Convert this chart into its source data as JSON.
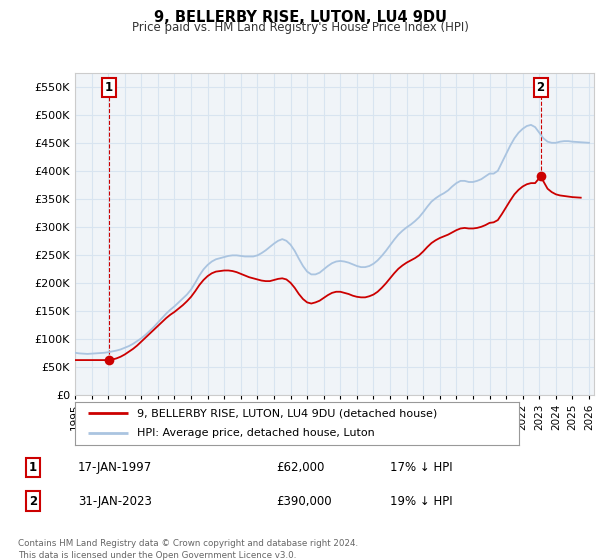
{
  "title": "9, BELLERBY RISE, LUTON, LU4 9DU",
  "subtitle": "Price paid vs. HM Land Registry's House Price Index (HPI)",
  "ylim": [
    0,
    575000
  ],
  "yticks": [
    0,
    50000,
    100000,
    150000,
    200000,
    250000,
    300000,
    350000,
    400000,
    450000,
    500000,
    550000
  ],
  "xlim_start": 1995.0,
  "xlim_end": 2026.3,
  "hpi_color": "#aac4e0",
  "price_color": "#cc0000",
  "transaction1_date": 1997.04,
  "transaction1_price": 62000,
  "transaction1_label": "1",
  "transaction2_date": 2023.08,
  "transaction2_price": 390000,
  "transaction2_label": "2",
  "legend_line1": "9, BELLERBY RISE, LUTON, LU4 9DU (detached house)",
  "legend_line2": "HPI: Average price, detached house, Luton",
  "table_row1_num": "1",
  "table_row1_date": "17-JAN-1997",
  "table_row1_price": "£62,000",
  "table_row1_hpi": "17% ↓ HPI",
  "table_row2_num": "2",
  "table_row2_date": "31-JAN-2023",
  "table_row2_price": "£390,000",
  "table_row2_hpi": "19% ↓ HPI",
  "footer": "Contains HM Land Registry data © Crown copyright and database right 2024.\nThis data is licensed under the Open Government Licence v3.0.",
  "bg_color": "#ffffff",
  "grid_color": "#d8e4f0",
  "hpi_data": [
    [
      1995.0,
      75000
    ],
    [
      1995.25,
      74000
    ],
    [
      1995.5,
      73500
    ],
    [
      1995.75,
      73000
    ],
    [
      1996.0,
      73500
    ],
    [
      1996.25,
      74000
    ],
    [
      1996.5,
      74500
    ],
    [
      1996.75,
      75000
    ],
    [
      1997.0,
      76000
    ],
    [
      1997.25,
      77500
    ],
    [
      1997.5,
      79000
    ],
    [
      1997.75,
      81000
    ],
    [
      1998.0,
      84000
    ],
    [
      1998.25,
      87000
    ],
    [
      1998.5,
      91000
    ],
    [
      1998.75,
      96000
    ],
    [
      1999.0,
      101000
    ],
    [
      1999.25,
      107000
    ],
    [
      1999.5,
      114000
    ],
    [
      1999.75,
      121000
    ],
    [
      2000.0,
      129000
    ],
    [
      2000.25,
      137000
    ],
    [
      2000.5,
      145000
    ],
    [
      2000.75,
      152000
    ],
    [
      2001.0,
      158000
    ],
    [
      2001.25,
      165000
    ],
    [
      2001.5,
      172000
    ],
    [
      2001.75,
      179000
    ],
    [
      2002.0,
      188000
    ],
    [
      2002.25,
      200000
    ],
    [
      2002.5,
      213000
    ],
    [
      2002.75,
      224000
    ],
    [
      2003.0,
      232000
    ],
    [
      2003.25,
      238000
    ],
    [
      2003.5,
      242000
    ],
    [
      2003.75,
      244000
    ],
    [
      2004.0,
      246000
    ],
    [
      2004.25,
      248000
    ],
    [
      2004.5,
      249000
    ],
    [
      2004.75,
      249000
    ],
    [
      2005.0,
      248000
    ],
    [
      2005.25,
      247000
    ],
    [
      2005.5,
      247000
    ],
    [
      2005.75,
      247000
    ],
    [
      2006.0,
      249000
    ],
    [
      2006.25,
      253000
    ],
    [
      2006.5,
      258000
    ],
    [
      2006.75,
      264000
    ],
    [
      2007.0,
      270000
    ],
    [
      2007.25,
      275000
    ],
    [
      2007.5,
      278000
    ],
    [
      2007.75,
      275000
    ],
    [
      2008.0,
      268000
    ],
    [
      2008.25,
      257000
    ],
    [
      2008.5,
      243000
    ],
    [
      2008.75,
      230000
    ],
    [
      2009.0,
      220000
    ],
    [
      2009.25,
      215000
    ],
    [
      2009.5,
      215000
    ],
    [
      2009.75,
      218000
    ],
    [
      2010.0,
      224000
    ],
    [
      2010.25,
      230000
    ],
    [
      2010.5,
      235000
    ],
    [
      2010.75,
      238000
    ],
    [
      2011.0,
      239000
    ],
    [
      2011.25,
      238000
    ],
    [
      2011.5,
      236000
    ],
    [
      2011.75,
      233000
    ],
    [
      2012.0,
      230000
    ],
    [
      2012.25,
      228000
    ],
    [
      2012.5,
      228000
    ],
    [
      2012.75,
      230000
    ],
    [
      2013.0,
      234000
    ],
    [
      2013.25,
      240000
    ],
    [
      2013.5,
      248000
    ],
    [
      2013.75,
      257000
    ],
    [
      2014.0,
      267000
    ],
    [
      2014.25,
      277000
    ],
    [
      2014.5,
      286000
    ],
    [
      2014.75,
      293000
    ],
    [
      2015.0,
      299000
    ],
    [
      2015.25,
      304000
    ],
    [
      2015.5,
      310000
    ],
    [
      2015.75,
      317000
    ],
    [
      2016.0,
      326000
    ],
    [
      2016.25,
      336000
    ],
    [
      2016.5,
      345000
    ],
    [
      2016.75,
      351000
    ],
    [
      2017.0,
      356000
    ],
    [
      2017.25,
      360000
    ],
    [
      2017.5,
      365000
    ],
    [
      2017.75,
      372000
    ],
    [
      2018.0,
      378000
    ],
    [
      2018.25,
      382000
    ],
    [
      2018.5,
      382000
    ],
    [
      2018.75,
      380000
    ],
    [
      2019.0,
      380000
    ],
    [
      2019.25,
      382000
    ],
    [
      2019.5,
      385000
    ],
    [
      2019.75,
      390000
    ],
    [
      2020.0,
      395000
    ],
    [
      2020.25,
      395000
    ],
    [
      2020.5,
      400000
    ],
    [
      2020.75,
      415000
    ],
    [
      2021.0,
      430000
    ],
    [
      2021.25,
      445000
    ],
    [
      2021.5,
      458000
    ],
    [
      2021.75,
      468000
    ],
    [
      2022.0,
      475000
    ],
    [
      2022.25,
      480000
    ],
    [
      2022.5,
      482000
    ],
    [
      2022.75,
      478000
    ],
    [
      2023.0,
      468000
    ],
    [
      2023.25,
      458000
    ],
    [
      2023.5,
      452000
    ],
    [
      2023.75,
      450000
    ],
    [
      2024.0,
      450000
    ],
    [
      2024.25,
      452000
    ],
    [
      2024.5,
      453000
    ],
    [
      2024.75,
      453000
    ],
    [
      2025.0,
      452000
    ],
    [
      2025.5,
      451000
    ],
    [
      2026.0,
      450000
    ]
  ],
  "price_data": [
    [
      1995.0,
      62000
    ],
    [
      1995.25,
      62000
    ],
    [
      1995.5,
      62000
    ],
    [
      1995.75,
      62000
    ],
    [
      1996.0,
      62000
    ],
    [
      1996.25,
      62000
    ],
    [
      1996.5,
      62000
    ],
    [
      1996.75,
      62000
    ],
    [
      1997.04,
      62000
    ],
    [
      1997.25,
      63000
    ],
    [
      1997.5,
      65000
    ],
    [
      1997.75,
      68000
    ],
    [
      1998.0,
      72000
    ],
    [
      1998.25,
      77000
    ],
    [
      1998.5,
      82000
    ],
    [
      1998.75,
      88000
    ],
    [
      1999.0,
      95000
    ],
    [
      1999.25,
      102000
    ],
    [
      1999.5,
      109000
    ],
    [
      1999.75,
      116000
    ],
    [
      2000.0,
      123000
    ],
    [
      2000.25,
      130000
    ],
    [
      2000.5,
      137000
    ],
    [
      2000.75,
      143000
    ],
    [
      2001.0,
      148000
    ],
    [
      2001.25,
      154000
    ],
    [
      2001.5,
      160000
    ],
    [
      2001.75,
      167000
    ],
    [
      2002.0,
      175000
    ],
    [
      2002.25,
      185000
    ],
    [
      2002.5,
      196000
    ],
    [
      2002.75,
      205000
    ],
    [
      2003.0,
      212000
    ],
    [
      2003.25,
      217000
    ],
    [
      2003.5,
      220000
    ],
    [
      2003.75,
      221000
    ],
    [
      2004.0,
      222000
    ],
    [
      2004.25,
      222000
    ],
    [
      2004.5,
      221000
    ],
    [
      2004.75,
      219000
    ],
    [
      2005.0,
      216000
    ],
    [
      2005.25,
      213000
    ],
    [
      2005.5,
      210000
    ],
    [
      2005.75,
      208000
    ],
    [
      2006.0,
      206000
    ],
    [
      2006.25,
      204000
    ],
    [
      2006.5,
      203000
    ],
    [
      2006.75,
      203000
    ],
    [
      2007.0,
      205000
    ],
    [
      2007.25,
      207000
    ],
    [
      2007.5,
      208000
    ],
    [
      2007.75,
      206000
    ],
    [
      2008.0,
      200000
    ],
    [
      2008.25,
      191000
    ],
    [
      2008.5,
      180000
    ],
    [
      2008.75,
      171000
    ],
    [
      2009.0,
      165000
    ],
    [
      2009.25,
      163000
    ],
    [
      2009.5,
      165000
    ],
    [
      2009.75,
      168000
    ],
    [
      2010.0,
      173000
    ],
    [
      2010.25,
      178000
    ],
    [
      2010.5,
      182000
    ],
    [
      2010.75,
      184000
    ],
    [
      2011.0,
      184000
    ],
    [
      2011.25,
      182000
    ],
    [
      2011.5,
      180000
    ],
    [
      2011.75,
      177000
    ],
    [
      2012.0,
      175000
    ],
    [
      2012.25,
      174000
    ],
    [
      2012.5,
      174000
    ],
    [
      2012.75,
      176000
    ],
    [
      2013.0,
      179000
    ],
    [
      2013.25,
      184000
    ],
    [
      2013.5,
      191000
    ],
    [
      2013.75,
      199000
    ],
    [
      2014.0,
      208000
    ],
    [
      2014.25,
      217000
    ],
    [
      2014.5,
      225000
    ],
    [
      2014.75,
      231000
    ],
    [
      2015.0,
      236000
    ],
    [
      2015.25,
      240000
    ],
    [
      2015.5,
      244000
    ],
    [
      2015.75,
      249000
    ],
    [
      2016.0,
      256000
    ],
    [
      2016.25,
      264000
    ],
    [
      2016.5,
      271000
    ],
    [
      2016.75,
      276000
    ],
    [
      2017.0,
      280000
    ],
    [
      2017.25,
      283000
    ],
    [
      2017.5,
      286000
    ],
    [
      2017.75,
      290000
    ],
    [
      2018.0,
      294000
    ],
    [
      2018.25,
      297000
    ],
    [
      2018.5,
      298000
    ],
    [
      2018.75,
      297000
    ],
    [
      2019.0,
      297000
    ],
    [
      2019.25,
      298000
    ],
    [
      2019.5,
      300000
    ],
    [
      2019.75,
      303000
    ],
    [
      2020.0,
      307000
    ],
    [
      2020.25,
      308000
    ],
    [
      2020.5,
      312000
    ],
    [
      2020.75,
      323000
    ],
    [
      2021.0,
      335000
    ],
    [
      2021.25,
      347000
    ],
    [
      2021.5,
      358000
    ],
    [
      2021.75,
      366000
    ],
    [
      2022.0,
      372000
    ],
    [
      2022.25,
      376000
    ],
    [
      2022.5,
      378000
    ],
    [
      2022.75,
      378000
    ],
    [
      2023.08,
      390000
    ],
    [
      2023.5,
      368000
    ],
    [
      2023.75,
      362000
    ],
    [
      2024.0,
      358000
    ],
    [
      2024.25,
      356000
    ],
    [
      2024.5,
      355000
    ],
    [
      2024.75,
      354000
    ],
    [
      2025.0,
      353000
    ],
    [
      2025.5,
      352000
    ]
  ]
}
